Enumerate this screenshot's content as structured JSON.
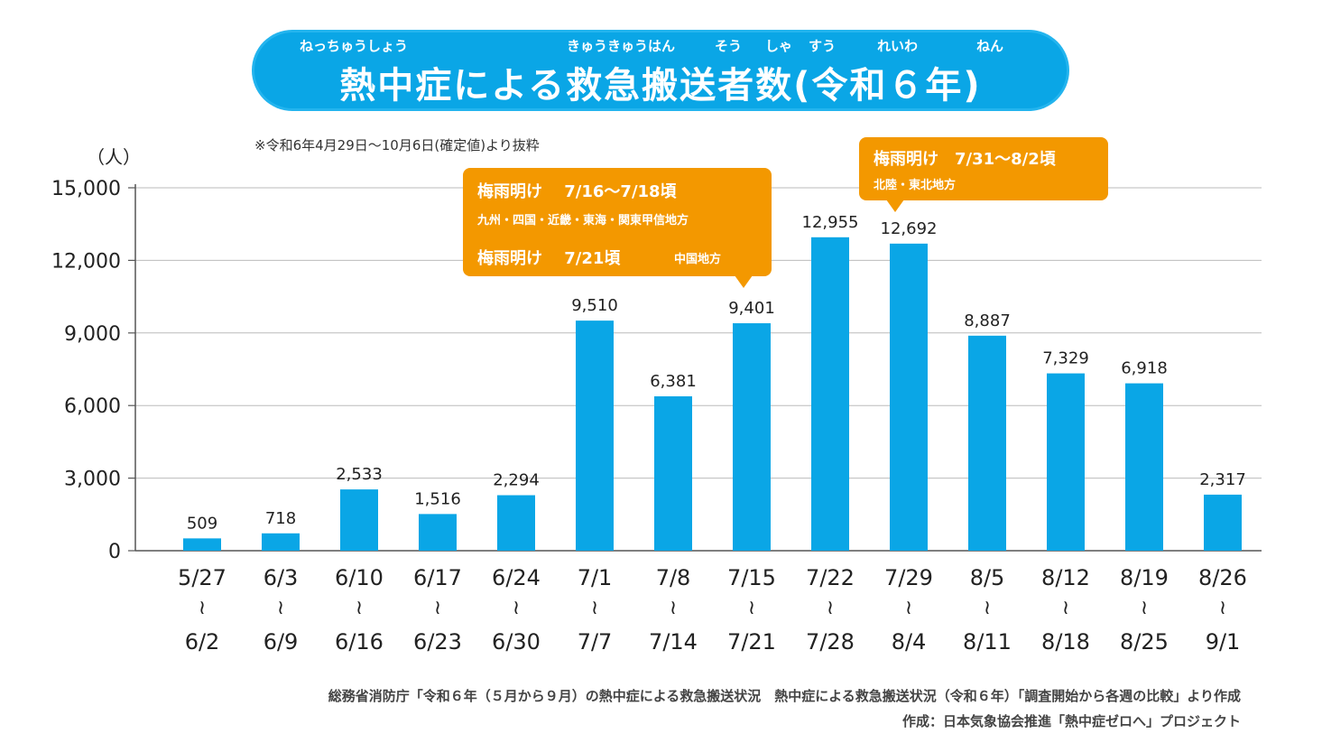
{
  "title": {
    "text": "熱中症による救急搬送者数(令和６年)",
    "ruby": [
      "ねっちゅうしょう",
      "きゅうきゅうはん",
      "そう",
      "しゃ",
      "すう",
      "れいわ",
      "ねん"
    ]
  },
  "colors": {
    "bar": "#0aa6e6",
    "callout": "#f39800",
    "banner": "#0aa6e6"
  },
  "note": "※令和6年4月29日〜10月6日(確定値)より抜粋",
  "unit": "（人）",
  "callout1": {
    "line1": "梅雨明け　 7/16〜7/18頃",
    "line2": "九州・四国・近畿・東海・関東甲信地方",
    "line3": "梅雨明け　 7/21頃",
    "line3_region": "中国地方"
  },
  "callout2": {
    "line1": "梅雨明け　7/31〜8/2頃",
    "line2": "北陸・東北地方"
  },
  "source": {
    "line1": "総務省消防庁「令和６年（５月から９月）の熱中症による救急搬送状況　熱中症による救急搬送状況（令和６年）「調査開始から各週の比較」より作成",
    "line2": "作成：日本気象協会推進「熱中症ゼロへ」プロジェクト"
  },
  "chart_data": {
    "type": "bar",
    "title": "熱中症による救急搬送者数(令和６年)",
    "ylabel": "（人）",
    "xlabel": "",
    "ylim": [
      0,
      15000
    ],
    "yticks": [
      0,
      3000,
      6000,
      9000,
      12000,
      15000
    ],
    "ytick_labels": [
      "0",
      "3,000",
      "6,000",
      "9,000",
      "12,000",
      "15,000"
    ],
    "grid": true,
    "categories_top": [
      "5/27",
      "6/3",
      "6/10",
      "6/17",
      "6/24",
      "7/1",
      "7/8",
      "7/15",
      "7/22",
      "7/29",
      "8/5",
      "8/12",
      "8/19",
      "8/26"
    ],
    "categories_bottom": [
      "6/2",
      "6/9",
      "6/16",
      "6/23",
      "6/30",
      "7/7",
      "7/14",
      "7/21",
      "7/28",
      "8/4",
      "8/11",
      "8/18",
      "8/25",
      "9/1"
    ],
    "separator": "≀",
    "values": [
      509,
      718,
      2533,
      1516,
      2294,
      9510,
      6381,
      9401,
      12955,
      12692,
      8887,
      7329,
      6918,
      2317
    ],
    "value_labels": [
      "509",
      "718",
      "2,533",
      "1,516",
      "2,294",
      "9,510",
      "6,381",
      "9,401",
      "12,955",
      "12,692",
      "8,887",
      "7,329",
      "6,918",
      "2,317"
    ]
  }
}
